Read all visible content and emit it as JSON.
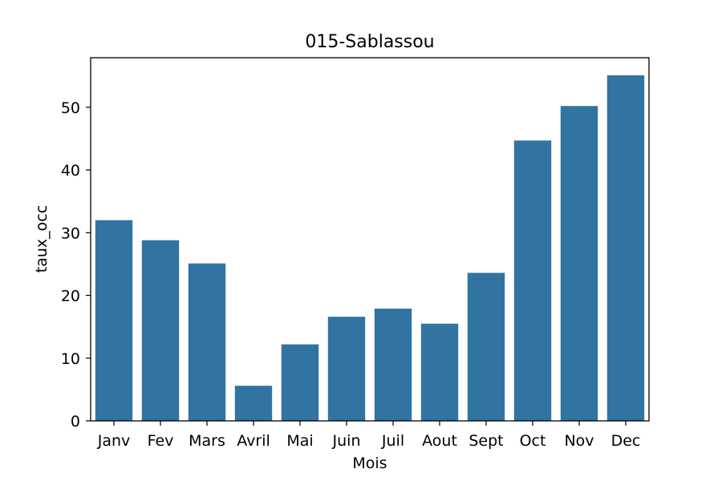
{
  "chart_data": {
    "type": "bar",
    "title": "015-Sablassou",
    "xlabel": "Mois",
    "ylabel": "taux_occ",
    "categories": [
      "Janv",
      "Fev",
      "Mars",
      "Avril",
      "Mai",
      "Juin",
      "Juil",
      "Aout",
      "Sept",
      "Oct",
      "Nov",
      "Dec"
    ],
    "values": [
      32.0,
      28.8,
      25.1,
      5.6,
      12.2,
      16.6,
      17.9,
      15.5,
      23.6,
      44.7,
      50.2,
      55.1
    ],
    "ylim": [
      0,
      57.9
    ],
    "yticks": [
      0,
      10,
      20,
      30,
      40,
      50
    ],
    "grid": false,
    "bar_color": "#3274a1"
  }
}
